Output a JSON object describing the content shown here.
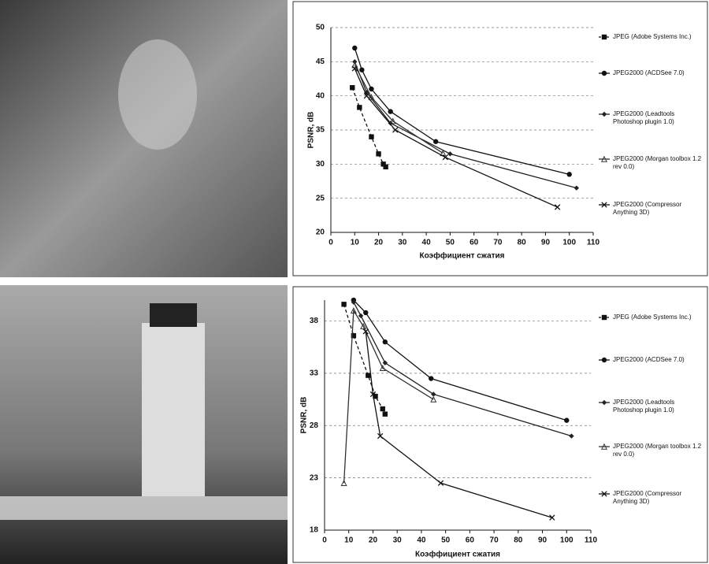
{
  "chart_data": [
    {
      "type": "line",
      "x_label": "Коэффициент сжатия",
      "y_label": "PSNR, dB",
      "xlim": [
        0,
        110
      ],
      "xticks": [
        0,
        10,
        20,
        30,
        40,
        50,
        60,
        70,
        80,
        90,
        100,
        110
      ],
      "ylim": [
        20,
        50
      ],
      "yticks": [
        20,
        25,
        30,
        35,
        40,
        45,
        50
      ],
      "grid": true,
      "series": [
        {
          "name": "JPEG (Adobe Systems Inc.)",
          "color": "#111111",
          "marker": "square",
          "dash": true,
          "x": [
            9,
            12,
            17,
            20,
            22,
            23
          ],
          "values": [
            41.2,
            38.3,
            34,
            31.5,
            30,
            29.6
          ]
        },
        {
          "name": "JPEG2000 (ACDSee 7.0)",
          "color": "#111111",
          "marker": "circle",
          "dash": false,
          "x": [
            10,
            13,
            17,
            25,
            44,
            100
          ],
          "values": [
            47,
            43.8,
            41,
            37.7,
            33.3,
            28.5
          ]
        },
        {
          "name": "JPEG2000 (Leadtools Photoshop plugin 1.0)",
          "color": "#222222",
          "marker": "diamond",
          "dash": false,
          "x": [
            10,
            15,
            25,
            50,
            103
          ],
          "values": [
            45,
            40.5,
            36,
            31.5,
            26.5
          ]
        },
        {
          "name": "JPEG2000 (Morgan toolbox 1.2 rev 0.0)",
          "color": "#333333",
          "marker": "triangle",
          "dash": false,
          "x": [
            10,
            17,
            26,
            47
          ],
          "values": [
            44.5,
            39.8,
            36.3,
            31.6
          ]
        },
        {
          "name": "JPEG2000 (Compressor Anything 3D)",
          "color": "#111111",
          "marker": "cross",
          "dash": false,
          "x": [
            10,
            15,
            27,
            48,
            95
          ],
          "values": [
            44,
            40,
            35,
            31,
            23.7
          ]
        }
      ]
    },
    {
      "type": "line",
      "x_label": "Коэффициент сжатия",
      "y_label": "PSNR, dB",
      "xlim": [
        0,
        110
      ],
      "xticks": [
        0,
        10,
        20,
        30,
        40,
        50,
        60,
        70,
        80,
        90,
        100,
        110
      ],
      "ylim": [
        18,
        40
      ],
      "yticks": [
        18,
        23,
        28,
        33,
        38
      ],
      "grid": true,
      "series": [
        {
          "name": "JPEG (Adobe Systems Inc.)",
          "color": "#111111",
          "marker": "square",
          "dash": true,
          "x": [
            8,
            12,
            18,
            21,
            24,
            25
          ],
          "values": [
            39.6,
            36.6,
            32.8,
            30.8,
            29.6,
            29.1
          ]
        },
        {
          "name": "JPEG2000 (ACDSee 7.0)",
          "color": "#111111",
          "marker": "circle",
          "dash": false,
          "x": [
            12,
            17,
            25,
            44,
            100
          ],
          "values": [
            40,
            38.8,
            36,
            32.5,
            28.5
          ]
        },
        {
          "name": "JPEG2000 (Leadtools Photoshop plugin 1.0)",
          "color": "#222222",
          "marker": "diamond",
          "dash": false,
          "x": [
            12,
            15,
            25,
            45,
            102
          ],
          "values": [
            39.8,
            38.5,
            34,
            31,
            27
          ]
        },
        {
          "name": "JPEG2000 (Morgan toolbox 1.2 rev 0.0)",
          "color": "#333333",
          "marker": "triangle",
          "dash": false,
          "x": [
            8,
            12,
            16,
            24,
            45
          ],
          "values": [
            22.5,
            39,
            37.5,
            33.5,
            30.5
          ]
        },
        {
          "name": "JPEG2000 (Compressor Anything 3D)",
          "color": "#111111",
          "marker": "cross",
          "dash": false,
          "x": [
            17,
            20,
            23,
            48,
            94
          ],
          "values": [
            37,
            31,
            27,
            22.5,
            19.2
          ]
        }
      ]
    }
  ]
}
